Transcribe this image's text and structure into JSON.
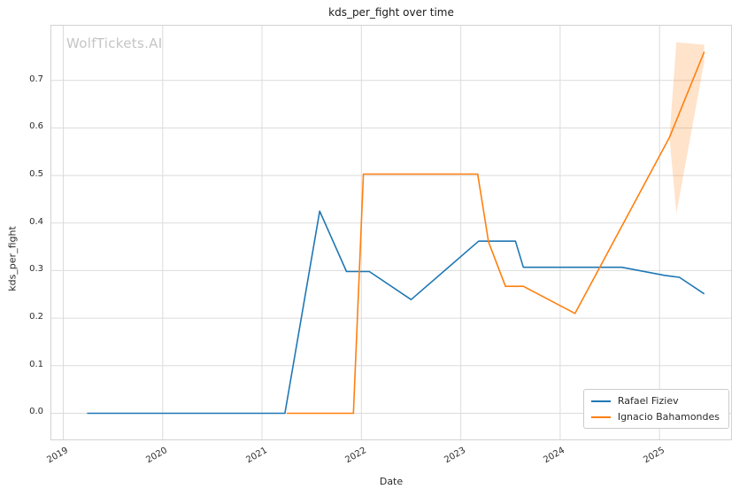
{
  "chart_data": {
    "type": "line",
    "title": "kds_per_fight over time",
    "xlabel": "Date",
    "ylabel": "kds_per_fight",
    "watermark": "WolfTickets.AI",
    "grid": true,
    "legend_position": "lower right",
    "xlim": [
      2018.88,
      2025.72
    ],
    "ylim": [
      -0.055,
      0.815
    ],
    "x_ticks": [
      {
        "label": "2019",
        "value": 2019
      },
      {
        "label": "2020",
        "value": 2020
      },
      {
        "label": "2021",
        "value": 2021
      },
      {
        "label": "2022",
        "value": 2022
      },
      {
        "label": "2023",
        "value": 2023
      },
      {
        "label": "2024",
        "value": 2024
      },
      {
        "label": "2025",
        "value": 2025
      }
    ],
    "y_ticks": [
      {
        "label": "0.0",
        "value": 0.0
      },
      {
        "label": "0.1",
        "value": 0.1
      },
      {
        "label": "0.2",
        "value": 0.2
      },
      {
        "label": "0.3",
        "value": 0.3
      },
      {
        "label": "0.4",
        "value": 0.4
      },
      {
        "label": "0.5",
        "value": 0.5
      },
      {
        "label": "0.6",
        "value": 0.6
      },
      {
        "label": "0.7",
        "value": 0.7
      }
    ],
    "series": [
      {
        "name": "Rafael Fiziev",
        "color": "#1f77b4",
        "points": [
          [
            2019.24,
            0.0
          ],
          [
            2019.7,
            0.0
          ],
          [
            2020.2,
            0.0
          ],
          [
            2020.7,
            0.0
          ],
          [
            2021.23,
            0.0
          ],
          [
            2021.58,
            0.425
          ],
          [
            2021.85,
            0.298
          ],
          [
            2022.08,
            0.298
          ],
          [
            2022.5,
            0.239
          ],
          [
            2023.18,
            0.362
          ],
          [
            2023.55,
            0.362
          ],
          [
            2023.63,
            0.307
          ],
          [
            2024.1,
            0.307
          ],
          [
            2024.62,
            0.307
          ],
          [
            2025.05,
            0.29
          ],
          [
            2025.2,
            0.286
          ],
          [
            2025.45,
            0.251
          ]
        ]
      },
      {
        "name": "Ignacio Bahamondes",
        "color": "#ff7f0e",
        "points": [
          [
            2021.25,
            0.0
          ],
          [
            2021.6,
            0.0
          ],
          [
            2021.92,
            0.0
          ],
          [
            2022.02,
            0.503
          ],
          [
            2022.35,
            0.503
          ],
          [
            2022.75,
            0.503
          ],
          [
            2023.17,
            0.503
          ],
          [
            2023.28,
            0.36
          ],
          [
            2023.45,
            0.267
          ],
          [
            2023.63,
            0.267
          ],
          [
            2024.15,
            0.21
          ],
          [
            2025.1,
            0.58
          ],
          [
            2025.45,
            0.76
          ]
        ]
      }
    ],
    "band": {
      "series": "Ignacio Bahamondes",
      "color": "#ff7f0e",
      "opacity": 0.22,
      "x": [
        2025.1,
        2025.17,
        2025.45
      ],
      "high": [
        0.58,
        0.78,
        0.775
      ],
      "low": [
        0.58,
        0.42,
        0.74
      ]
    }
  }
}
